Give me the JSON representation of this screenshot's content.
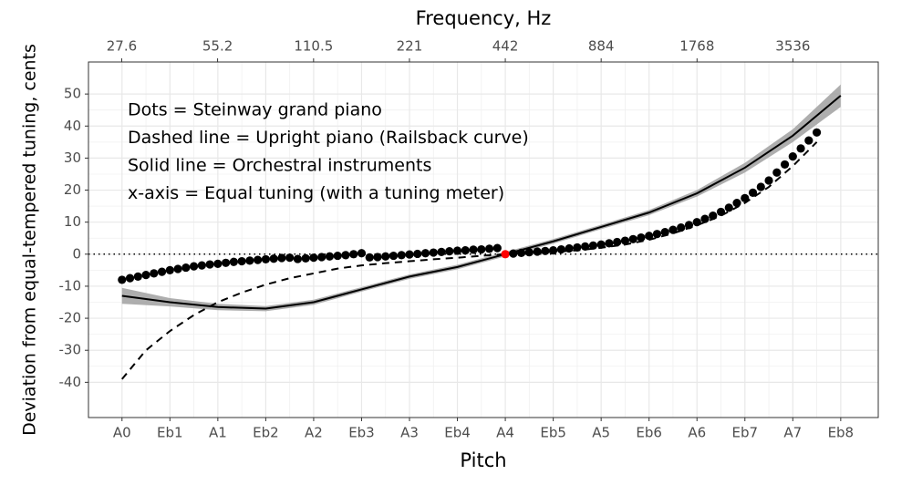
{
  "chart_data": {
    "type": "line",
    "xlabel": "Pitch",
    "x2label": "Frequency, Hz",
    "ylabel": "Deviation from equal-tempered tuning, cents",
    "annotations": [
      "Dots = Steinway grand piano",
      "Dashed line = Upright piano (Railsback curve)",
      "Solid line = Orchestral instruments",
      "x-axis = Equal tuning (with a tuning meter)"
    ],
    "xlim": [
      -4.2,
      94.7
    ],
    "xticks": [
      {
        "value": 0,
        "label": "A0"
      },
      {
        "value": 6,
        "label": "Eb1"
      },
      {
        "value": 12,
        "label": "A1"
      },
      {
        "value": 18,
        "label": "Eb2"
      },
      {
        "value": 24,
        "label": "A2"
      },
      {
        "value": 30,
        "label": "Eb3"
      },
      {
        "value": 36,
        "label": "A3"
      },
      {
        "value": 42,
        "label": "Eb4"
      },
      {
        "value": 48,
        "label": "A4"
      },
      {
        "value": 54,
        "label": "Eb5"
      },
      {
        "value": 60,
        "label": "A5"
      },
      {
        "value": 66,
        "label": "Eb6"
      },
      {
        "value": 72,
        "label": "A6"
      },
      {
        "value": 78,
        "label": "Eb7"
      },
      {
        "value": 84,
        "label": "A7"
      },
      {
        "value": 90,
        "label": "Eb8"
      }
    ],
    "x2lim": [
      21.7,
      6555
    ],
    "x2scale": "log",
    "x2ticks": [
      27.6,
      55.2,
      110.5,
      221,
      442,
      884,
      1768,
      3536
    ],
    "ylim": [
      -51,
      60
    ],
    "yticks": [
      -40,
      -30,
      -20,
      -10,
      0,
      10,
      20,
      30,
      40,
      50
    ],
    "grid": true,
    "reference_line": 0,
    "series": [
      {
        "style": "solid",
        "color": "#000000",
        "band_color": "#a0a0a0",
        "x": [
          0,
          6,
          12,
          18,
          24,
          30,
          36,
          42,
          48,
          54,
          60,
          66,
          72,
          78,
          84,
          90
        ],
        "values": [
          -13,
          -15,
          -16.5,
          -17,
          -15,
          -11,
          -7,
          -4,
          0,
          4,
          8.5,
          13,
          19,
          27,
          37,
          49.5
        ],
        "lower": [
          -15.5,
          -16.3,
          -17.5,
          -17.8,
          -15.8,
          -11.7,
          -7.7,
          -4.7,
          -0.7,
          3.3,
          7.8,
          12.2,
          18,
          25.5,
          35,
          46
        ],
        "upper": [
          -10.5,
          -13.7,
          -15.5,
          -16.2,
          -14.2,
          -10.3,
          -6.3,
          -3.3,
          0.7,
          4.7,
          9.2,
          13.8,
          20,
          28.5,
          39,
          53
        ]
      },
      {
        "style": "dashed",
        "color": "#000000",
        "x": [
          0,
          3,
          6,
          9,
          12,
          15,
          18,
          21,
          24,
          27,
          30,
          33,
          36,
          39,
          42,
          45,
          48,
          51,
          54,
          57,
          60,
          63,
          66,
          69,
          72,
          75,
          78,
          81,
          84,
          87
        ],
        "values": [
          -39,
          -30,
          -24,
          -19,
          -15,
          -12,
          -9.5,
          -7.5,
          -6,
          -4.5,
          -3.5,
          -2.8,
          -2.2,
          -1.6,
          -1.1,
          -0.5,
          0,
          0.3,
          0.7,
          1.2,
          2,
          3,
          4.5,
          6.5,
          9,
          12,
          16,
          21,
          27.5,
          35
        ]
      },
      {
        "style": "dots",
        "color": "#000000",
        "highlight_index": 48,
        "highlight_color": "#ff0000",
        "x": [
          0,
          1,
          2,
          3,
          4,
          5,
          6,
          7,
          8,
          9,
          10,
          11,
          12,
          13,
          14,
          15,
          16,
          17,
          18,
          19,
          20,
          21,
          22,
          23,
          24,
          25,
          26,
          27,
          28,
          29,
          30,
          31,
          32,
          33,
          34,
          35,
          36,
          37,
          38,
          39,
          40,
          41,
          42,
          43,
          44,
          45,
          46,
          47,
          48,
          49,
          50,
          51,
          52,
          53,
          54,
          55,
          56,
          57,
          58,
          59,
          60,
          61,
          62,
          63,
          64,
          65,
          66,
          67,
          68,
          69,
          70,
          71,
          72,
          73,
          74,
          75,
          76,
          77,
          78,
          79,
          80,
          81,
          82,
          83,
          84,
          85,
          86,
          87
        ],
        "values": [
          -8,
          -7.5,
          -7,
          -6.5,
          -6,
          -5.5,
          -5,
          -4.6,
          -4.2,
          -3.8,
          -3.5,
          -3.2,
          -3,
          -2.7,
          -2.4,
          -2.2,
          -2,
          -1.8,
          -1.6,
          -1.4,
          -1.2,
          -1.1,
          -1.5,
          -1.3,
          -1.1,
          -0.9,
          -0.7,
          -0.5,
          -0.3,
          0,
          0.3,
          -1,
          -0.9,
          -0.7,
          -0.5,
          -0.3,
          -0.1,
          0.1,
          0.3,
          0.5,
          0.7,
          0.9,
          1.1,
          1.2,
          1.4,
          1.5,
          1.7,
          1.9,
          0,
          0.2,
          0.4,
          0.6,
          0.8,
          1,
          1.2,
          1.5,
          1.8,
          2.1,
          2.4,
          2.7,
          3,
          3.4,
          3.8,
          4.2,
          4.7,
          5.2,
          5.7,
          6.3,
          6.9,
          7.6,
          8.3,
          9.1,
          10,
          11,
          12,
          13.2,
          14.5,
          16,
          17.5,
          19.2,
          21,
          23,
          25.5,
          28,
          30.5,
          33,
          35.5,
          38
        ]
      }
    ]
  }
}
